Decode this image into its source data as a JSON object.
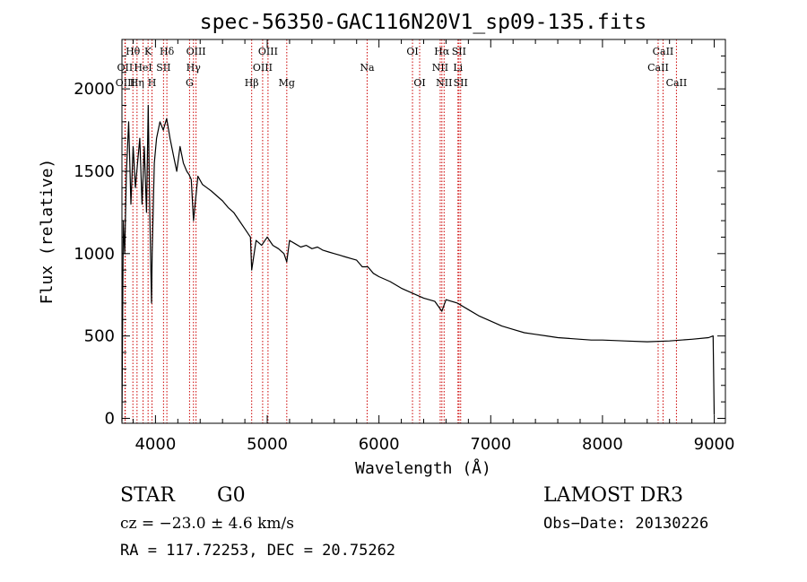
{
  "chart_data": {
    "type": "line",
    "title": "spec-56350-GAC116N20V1_sp09-135.fits",
    "xlabel": "Wavelength (Å)",
    "ylabel": "Flux (relative)",
    "xlim": [
      3700,
      9100
    ],
    "ylim": [
      -30,
      2300
    ],
    "xticks": [
      4000,
      5000,
      6000,
      7000,
      8000,
      9000
    ],
    "yticks": [
      0,
      500,
      1000,
      1500,
      2000
    ],
    "xtick_labels": [
      "4000",
      "5000",
      "6000",
      "7000",
      "8000",
      "9000"
    ],
    "ytick_labels": [
      "0",
      "500",
      "1000",
      "1500",
      "2000"
    ],
    "series": [
      {
        "name": "flux",
        "x": [
          3700,
          3712,
          3725,
          3740,
          3760,
          3780,
          3800,
          3820,
          3840,
          3860,
          3880,
          3900,
          3920,
          3935,
          3950,
          3965,
          3970,
          3990,
          4010,
          4040,
          4070,
          4100,
          4130,
          4160,
          4190,
          4220,
          4250,
          4280,
          4300,
          4320,
          4340,
          4380,
          4420,
          4460,
          4500,
          4550,
          4600,
          4650,
          4700,
          4750,
          4800,
          4850,
          4861,
          4900,
          4950,
          5000,
          5050,
          5100,
          5150,
          5175,
          5200,
          5250,
          5300,
          5350,
          5400,
          5450,
          5500,
          5550,
          5600,
          5650,
          5700,
          5750,
          5800,
          5850,
          5900,
          5950,
          6000,
          6100,
          6200,
          6300,
          6400,
          6500,
          6563,
          6600,
          6700,
          6800,
          6900,
          7000,
          7100,
          7200,
          7300,
          7400,
          7500,
          7600,
          7700,
          7800,
          7900,
          8000,
          8200,
          8400,
          8600,
          8800,
          8950,
          8990,
          9000
        ],
        "y": [
          -20,
          1200,
          1000,
          1500,
          1800,
          1300,
          1650,
          1400,
          1550,
          1700,
          1300,
          1650,
          1250,
          1900,
          1200,
          700,
          1000,
          1550,
          1700,
          1800,
          1750,
          1820,
          1700,
          1600,
          1500,
          1650,
          1550,
          1500,
          1480,
          1450,
          1200,
          1470,
          1420,
          1400,
          1380,
          1350,
          1320,
          1280,
          1250,
          1200,
          1150,
          1100,
          900,
          1080,
          1050,
          1100,
          1050,
          1030,
          1000,
          950,
          1080,
          1060,
          1040,
          1050,
          1030,
          1040,
          1020,
          1010,
          1000,
          990,
          980,
          970,
          960,
          920,
          920,
          880,
          860,
          830,
          790,
          760,
          730,
          710,
          650,
          720,
          700,
          660,
          620,
          590,
          560,
          540,
          520,
          510,
          500,
          490,
          485,
          480,
          475,
          475,
          470,
          465,
          470,
          480,
          490,
          500,
          20
        ]
      }
    ],
    "line_markers": [
      {
        "label": "OII",
        "wavelength": 3727,
        "row": 1
      },
      {
        "label": "OIII",
        "wavelength": 3730,
        "row": 2
      },
      {
        "label": "Hθ",
        "wavelength": 3798,
        "row": 0
      },
      {
        "label": "Hη",
        "wavelength": 3835,
        "row": 2
      },
      {
        "label": "HeI",
        "wavelength": 3889,
        "row": 1
      },
      {
        "label": "K",
        "wavelength": 3934,
        "row": 0
      },
      {
        "label": "H",
        "wavelength": 3969,
        "row": 2
      },
      {
        "label": "SII",
        "wavelength": 4072,
        "row": 1
      },
      {
        "label": "Hδ",
        "wavelength": 4102,
        "row": 0
      },
      {
        "label": "G",
        "wavelength": 4305,
        "row": 2
      },
      {
        "label": "Hγ",
        "wavelength": 4340,
        "row": 1
      },
      {
        "label": "OIII",
        "wavelength": 4363,
        "row": 0
      },
      {
        "label": "Hβ",
        "wavelength": 4861,
        "row": 2
      },
      {
        "label": "OIII",
        "wavelength": 4959,
        "row": 1
      },
      {
        "label": "OIII",
        "wavelength": 5007,
        "row": 0
      },
      {
        "label": "Mg",
        "wavelength": 5175,
        "row": 2
      },
      {
        "label": "Na",
        "wavelength": 5894,
        "row": 1
      },
      {
        "label": "OI",
        "wavelength": 6300,
        "row": 0
      },
      {
        "label": "OI",
        "wavelength": 6364,
        "row": 2
      },
      {
        "label": "NII",
        "wavelength": 6548,
        "row": 1
      },
      {
        "label": "Hα",
        "wavelength": 6563,
        "row": 0
      },
      {
        "label": "NII",
        "wavelength": 6583,
        "row": 2
      },
      {
        "label": "Li",
        "wavelength": 6707,
        "row": 1
      },
      {
        "label": "SII",
        "wavelength": 6716,
        "row": 0
      },
      {
        "label": "SII",
        "wavelength": 6731,
        "row": 2
      },
      {
        "label": "CaII",
        "wavelength": 8498,
        "row": 1
      },
      {
        "label": "CaII",
        "wavelength": 8542,
        "row": 0
      },
      {
        "label": "CaII",
        "wavelength": 8662,
        "row": 2
      }
    ],
    "line_marker_color": "#cc0000"
  },
  "info": {
    "class": "STAR",
    "subclass": "G0",
    "survey": "LAMOST DR3",
    "cz": "cz = −23.0 ± 4.6 km/s",
    "obs_date": "Obs−Date: 20130226",
    "coords": "RA = 117.72253, DEC =  20.75262"
  }
}
